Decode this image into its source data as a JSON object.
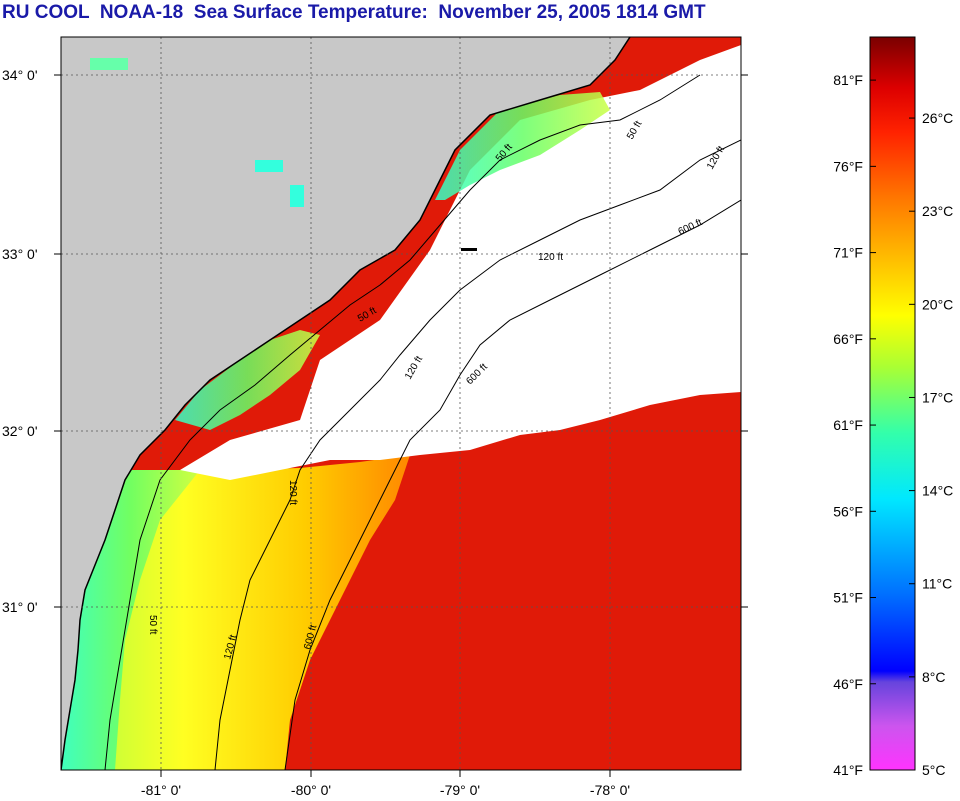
{
  "title": "RU COOL  NOAA-18  Sea Surface Temperature:  November 25, 2005 1814 GMT",
  "latitude_labels": [
    "34° 0'",
    "33° 0'",
    "32° 0'",
    "31° 0'"
  ],
  "longitude_labels": [
    "-81° 0'",
    "-80° 0'",
    "-79° 0'",
    "-78° 0'"
  ],
  "contour_labels": [
    "50 ft",
    "50 ft",
    "50 ft",
    "50 ft",
    "120 ft",
    "120 ft",
    "120 ft",
    "120 ft",
    "120 ft",
    "600 ft",
    "600 ft",
    "600 ft"
  ],
  "colorbar": {
    "fahrenheit": [
      "81°F",
      "76°F",
      "71°F",
      "66°F",
      "61°F",
      "56°F",
      "51°F",
      "46°F",
      "41°F"
    ],
    "celsius": [
      "26°C",
      "23°C",
      "20°C",
      "17°C",
      "14°C",
      "11°C",
      "8°C",
      "5°C"
    ],
    "gradient_colors": [
      "#ff33ff",
      "#9966dd",
      "#0000ff",
      "#0080ff",
      "#00e8ff",
      "#33ffaa",
      "#aaff33",
      "#ffff00",
      "#ffbb00",
      "#ff7700",
      "#ff2200",
      "#dd0000",
      "#800000"
    ]
  },
  "colors": {
    "land": "#c8c8c8",
    "cloud": "#ffffff",
    "warm": "#e01a08",
    "title": "#1a1aa8"
  }
}
